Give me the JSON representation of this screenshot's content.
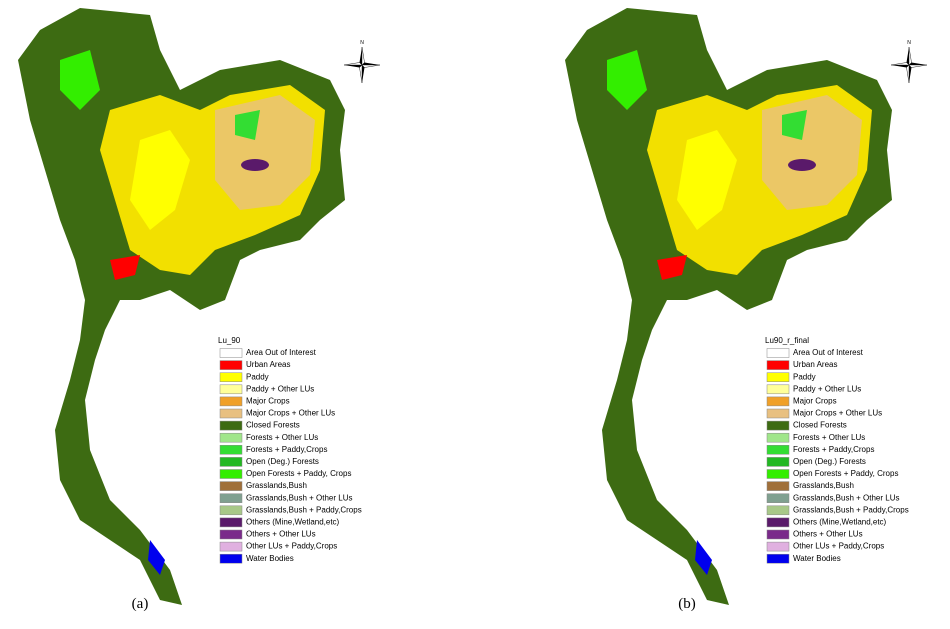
{
  "compass": "N",
  "panels": [
    {
      "caption": "(a)",
      "legend": {
        "title": "Lu_90",
        "items": [
          {
            "label": "Area Out of Interest",
            "color": "#ffffff"
          },
          {
            "label": "Urban Areas",
            "color": "#ff0000"
          },
          {
            "label": "Paddy",
            "color": "#ffff00"
          },
          {
            "label": "Paddy + Other LUs",
            "color": "#ffff99"
          },
          {
            "label": "Major Crops",
            "color": "#f0a028"
          },
          {
            "label": "Major Crops + Other LUs",
            "color": "#e8c080"
          },
          {
            "label": "Closed Forests",
            "color": "#3d6b12"
          },
          {
            "label": "Forests + Other LUs",
            "color": "#a0e68a"
          },
          {
            "label": "Forests + Paddy,Crops",
            "color": "#33dd33"
          },
          {
            "label": "Open (Deg.) Forests",
            "color": "#22b822"
          },
          {
            "label": "Open Forests + Paddy, Crops",
            "color": "#33ee00"
          },
          {
            "label": "Grasslands,Bush",
            "color": "#a0703a"
          },
          {
            "label": "Grasslands,Bush + Other LUs",
            "color": "#80a090"
          },
          {
            "label": "Grasslands,Bush + Paddy,Crops",
            "color": "#a8c888"
          },
          {
            "label": "Others (Mine,Wetland,etc)",
            "color": "#5a1a6a"
          },
          {
            "label": "Others + Other LUs",
            "color": "#7a2a8a"
          },
          {
            "label": "Other LUs + Paddy,Crops",
            "color": "#e0b0e0"
          },
          {
            "label": "Water Bodies",
            "color": "#0000ee"
          }
        ]
      }
    },
    {
      "caption": "(b)",
      "legend": {
        "title": "Lu90_r_final",
        "items": [
          {
            "label": "Area Out of Interest",
            "color": "#ffffff"
          },
          {
            "label": "Urban Areas",
            "color": "#ff0000"
          },
          {
            "label": "Paddy",
            "color": "#ffff00"
          },
          {
            "label": "Paddy + Other LUs",
            "color": "#ffff99"
          },
          {
            "label": "Major Crops",
            "color": "#f0a028"
          },
          {
            "label": "Major Crops + Other LUs",
            "color": "#e8c080"
          },
          {
            "label": "Closed Forests",
            "color": "#3d6b12"
          },
          {
            "label": "Forests + Other LUs",
            "color": "#a0e68a"
          },
          {
            "label": "Forests + Paddy,Crops",
            "color": "#33dd33"
          },
          {
            "label": "Open (Deg.) Forests",
            "color": "#22b822"
          },
          {
            "label": "Open Forests + Paddy, Crops",
            "color": "#33ee00"
          },
          {
            "label": "Grasslands,Bush",
            "color": "#a0703a"
          },
          {
            "label": "Grasslands,Bush + Other LUs",
            "color": "#80a090"
          },
          {
            "label": "Grasslands,Bush + Paddy,Crops",
            "color": "#a8c888"
          },
          {
            "label": "Others (Mine,Wetland,etc)",
            "color": "#5a1a6a"
          },
          {
            "label": "Others + Other LUs",
            "color": "#7a2a8a"
          },
          {
            "label": "Other LUs + Paddy,Crops",
            "color": "#e0b0e0"
          },
          {
            "label": "Water Bodies",
            "color": "#0000ee"
          }
        ]
      }
    }
  ]
}
